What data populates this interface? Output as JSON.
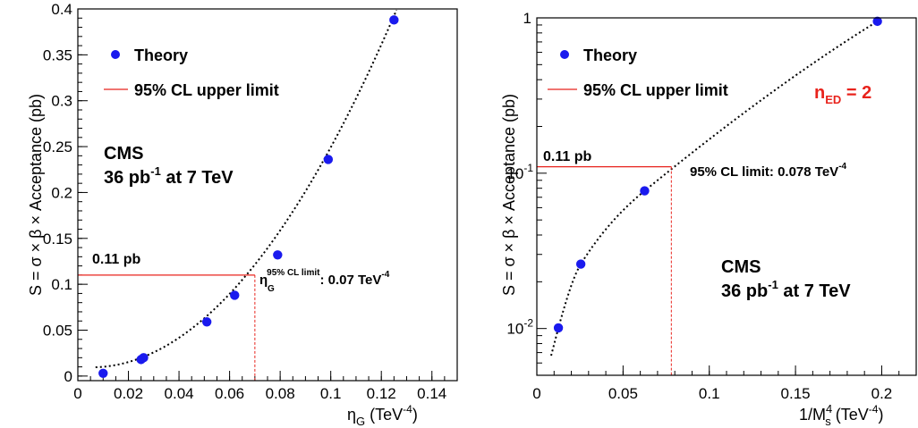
{
  "chart_data": [
    {
      "type": "scatter",
      "xlabel": "η_G (TeV^-4)",
      "ylabel": "S = σ × β × Acceptance (pb)",
      "xlim": [
        0,
        0.15
      ],
      "ylim": [
        -0.005,
        0.4
      ],
      "xticks": [
        "0",
        "0.02",
        "0.04",
        "0.06",
        "0.08",
        "0.1",
        "0.12",
        "0.14"
      ],
      "yticks": [
        "0",
        "0.05",
        "0.1",
        "0.15",
        "0.2",
        "0.25",
        "0.3",
        "0.35",
        "0.4"
      ],
      "legend": {
        "placement": "top-left",
        "entries": [
          "Theory",
          "95% CL upper limit"
        ]
      },
      "series": [
        {
          "name": "Theory",
          "x": [
            0.01,
            0.025,
            0.026,
            0.051,
            0.062,
            0.079,
            0.099,
            0.125
          ],
          "y": [
            0.003,
            0.018,
            0.02,
            0.059,
            0.088,
            0.132,
            0.236,
            0.388
          ]
        }
      ],
      "limit_value": 0.11,
      "limit_x": 0.07,
      "limit_label": "0.11 pb",
      "annotation_main": "η",
      "annotation_sub": "G",
      "annotation_sup": "95% CL limit",
      "annotation_tail": ": 0.07 TeV",
      "annotation_tail_sup": "-4",
      "cms_label": "CMS",
      "lumi_label": "36 pb",
      "lumi_sup": "-1",
      "lumi_tail": " at 7 TeV"
    },
    {
      "type": "scatter",
      "xlabel": "1/M_s^4 (TeV^-4)",
      "ylabel": "S = σ × β × Acceptance (pb)",
      "xlim": [
        0,
        0.22
      ],
      "ylim": [
        0.005,
        1
      ],
      "yscale": "log",
      "xticks": [
        "0",
        "0.05",
        "0.1",
        "0.15",
        "0.2"
      ],
      "yticks": [
        "10^-2",
        "10^-1",
        "1"
      ],
      "legend": {
        "placement": "top-left",
        "entries": [
          "Theory",
          "95% CL upper limit"
        ]
      },
      "series": [
        {
          "name": "Theory",
          "x": [
            0.0125,
            0.0255,
            0.0625,
            0.1975
          ],
          "y": [
            0.0101,
            0.026,
            0.077,
            0.95
          ]
        }
      ],
      "limit_value": 0.11,
      "limit_x": 0.078,
      "limit_label": "0.11 pb",
      "annotation": "95% CL limit: 0.078 TeV",
      "annotation_sup": "-4",
      "ned_main": "n",
      "ned_sub": "ED",
      "ned_tail": " = 2",
      "cms_label": "CMS",
      "lumi_label": "36 pb",
      "lumi_sup": "-1",
      "lumi_tail": " at 7 TeV"
    }
  ],
  "colors": {
    "theory": "#1a1aee",
    "limit": "#e8231c",
    "curve": "#000000"
  }
}
